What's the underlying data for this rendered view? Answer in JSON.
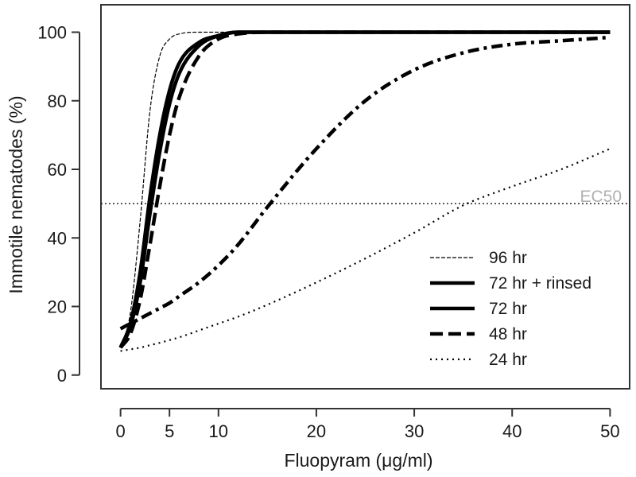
{
  "chart_data": {
    "type": "line",
    "title": "",
    "xlabel": "Fluopyram (μg/ml)",
    "ylabel": "Immotile nematodes (%)",
    "xlim": [
      -2,
      52
    ],
    "ylim": [
      -4,
      108
    ],
    "x_ticks": [
      0,
      5,
      10,
      20,
      30,
      40,
      50
    ],
    "y_ticks": [
      0,
      20,
      40,
      60,
      80,
      100
    ],
    "grid": false,
    "legend_position": "bottom-right",
    "reference_line": {
      "y": 50,
      "label": "EC50"
    },
    "x": [
      0,
      1,
      2,
      3,
      4,
      5,
      6,
      8,
      10,
      12,
      15,
      20,
      25,
      30,
      35,
      40,
      45,
      50
    ],
    "series": [
      {
        "name": "96 hr",
        "style": "thin-dashed",
        "values": [
          8,
          18,
          45,
          77,
          93,
          98,
          99.5,
          100,
          100,
          100,
          100,
          100,
          100,
          100,
          100,
          100,
          100,
          100
        ]
      },
      {
        "name": "72 hr + rinsed",
        "style": "solid",
        "values": [
          8,
          15,
          30,
          52,
          70,
          83,
          91,
          97,
          99,
          100,
          100,
          100,
          100,
          100,
          100,
          100,
          100,
          100
        ]
      },
      {
        "name": "72 hr",
        "style": "solid",
        "values": [
          8,
          14,
          27,
          47,
          65,
          79,
          88,
          96,
          99,
          100,
          100,
          100,
          100,
          100,
          100,
          100,
          100,
          100
        ]
      },
      {
        "name": "48 hr",
        "style": "long-dash",
        "values": [
          8,
          12,
          22,
          38,
          55,
          70,
          81,
          93,
          98,
          99.5,
          100,
          100,
          100,
          100,
          100,
          100,
          100,
          100
        ]
      },
      {
        "name": "",
        "style": "dash-dot",
        "values": [
          13.5,
          15,
          16.5,
          18,
          19.5,
          21,
          23,
          27,
          32,
          38,
          49,
          66,
          80,
          89,
          94,
          96.5,
          97.5,
          98.5
        ]
      },
      {
        "name": "24 hr",
        "style": "dotted",
        "values": [
          7,
          7.5,
          8,
          8.7,
          9.4,
          10.2,
          11,
          13,
          15,
          17,
          20.5,
          27,
          34,
          41.5,
          49.5,
          55,
          60,
          66
        ]
      }
    ],
    "colors": {
      "lines": "#000000",
      "ec50_label": "#b0b0b0",
      "axes": "#333333"
    }
  }
}
